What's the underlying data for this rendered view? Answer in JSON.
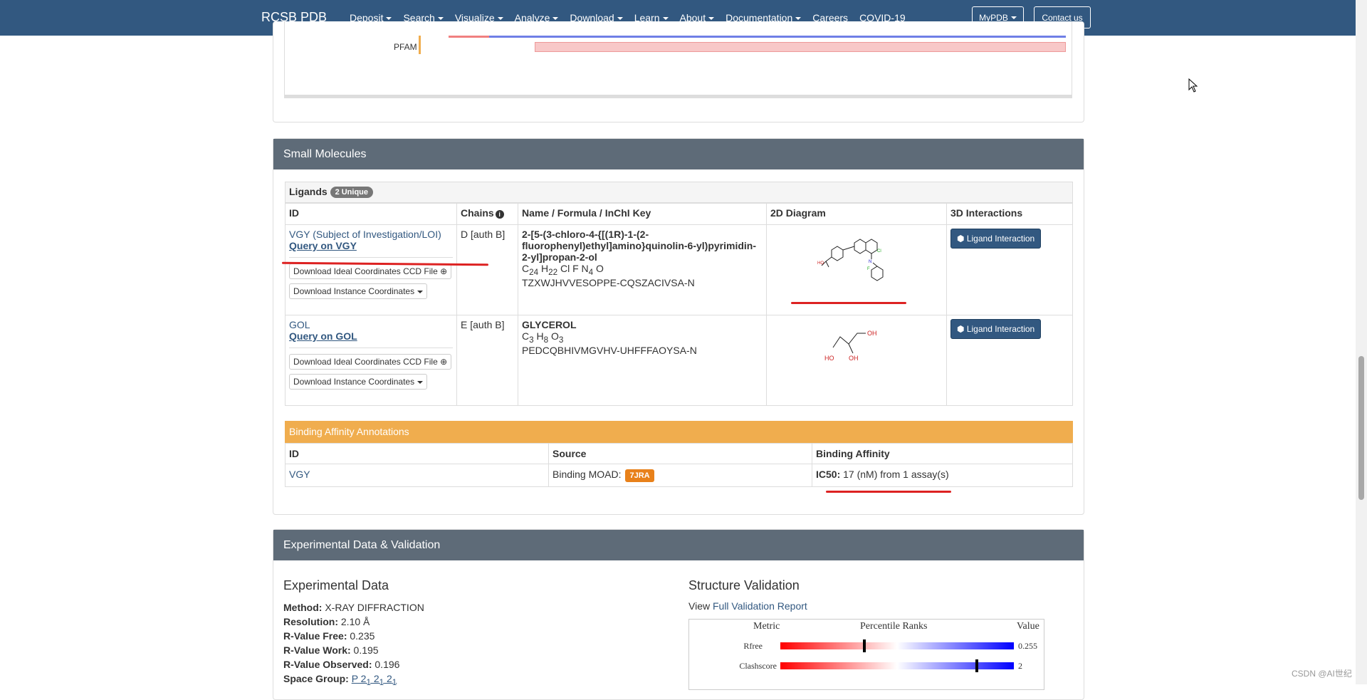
{
  "nav": {
    "brand": "RCSB PDB",
    "items": [
      "Deposit",
      "Search",
      "Visualize",
      "Analyze",
      "Download",
      "Learn",
      "About",
      "Documentation"
    ],
    "careers": "Careers",
    "covid": "COVID-19",
    "mypdb": "MyPDB",
    "contact": "Contact us"
  },
  "top_panel": {
    "pfam_label": "PFAM"
  },
  "small_molecules": {
    "heading": "Small Molecules",
    "ligands_title": "Ligands",
    "unique_badge": "2 Unique",
    "headers": {
      "id": "ID",
      "chains": "Chains",
      "name": "Name / Formula / InChI Key",
      "diagram": "2D Diagram",
      "interactions": "3D Interactions"
    },
    "rows": [
      {
        "id_link": "VGY (Subject of Investigation/LOI)",
        "query": "Query on VGY",
        "dl_ideal": "Download Ideal Coordinates CCD File",
        "dl_instance": "Download Instance Coordinates",
        "chains": "D [auth B]",
        "name": "2-[5-(3-chloro-4-{[(1R)-1-(2-fluorophenyl)ethyl]amino}quinolin-6-yl)pyrimidin-2-yl]propan-2-ol",
        "formula": [
          {
            "el": "C",
            "n": "24"
          },
          {
            "el": "H",
            "n": "22"
          },
          {
            "el": "Cl",
            "n": ""
          },
          {
            "el": "F",
            "n": ""
          },
          {
            "el": "N",
            "n": "4"
          },
          {
            "el": "O",
            "n": ""
          }
        ],
        "inchi": "TZXWJHVVESOPPE-CQSZACIVSA-N",
        "btn": "Ligand Interaction"
      },
      {
        "id_link": "GOL",
        "query": "Query on GOL",
        "dl_ideal": "Download Ideal Coordinates CCD File",
        "dl_instance": "Download Instance Coordinates",
        "chains": "E [auth B]",
        "name": "GLYCEROL",
        "formula": [
          {
            "el": "C",
            "n": "3"
          },
          {
            "el": "H",
            "n": "8"
          },
          {
            "el": "O",
            "n": "3"
          }
        ],
        "inchi": "PEDCQBHIVMGVHV-UHFFFAOYSA-N",
        "btn": "Ligand Interaction"
      }
    ],
    "gol_atoms": {
      "oh1": "OH",
      "oh2": "HO",
      "oh3": "OH"
    },
    "vgy_atoms": {
      "f": "F",
      "n": "N",
      "cl": "Cl",
      "ho": "HO"
    },
    "binding": {
      "title": "Binding Affinity Annotations",
      "headers": {
        "id": "ID",
        "source": "Source",
        "affinity": "Binding Affinity"
      },
      "row": {
        "id": "VGY",
        "source": "Binding MOAD:",
        "source_badge": "7JRA",
        "affinity_label": "IC50:",
        "affinity_value": "17 (nM) from 1 assay(s)"
      }
    }
  },
  "experimental": {
    "heading": "Experimental Data & Validation",
    "exp_title": "Experimental Data",
    "fields": [
      {
        "label": "Method:",
        "value": "X-RAY DIFFRACTION"
      },
      {
        "label": "Resolution:",
        "value": "2.10 Å"
      },
      {
        "label": "R-Value Free:",
        "value": "0.235"
      },
      {
        "label": "R-Value Work:",
        "value": "0.195"
      },
      {
        "label": "R-Value Observed:",
        "value": "0.196"
      }
    ],
    "space_group_label": "Space Group:",
    "space_group": {
      "prefix": "P 2",
      "subs": [
        "1",
        "1",
        "1"
      ]
    },
    "val_title": "Structure Validation",
    "view_text": "View",
    "report_link": "Full Validation Report",
    "slider": {
      "metric": "Metric",
      "percentile": "Percentile Ranks",
      "value": "Value",
      "rows": [
        {
          "name": "Rfree",
          "value": "0.255",
          "pct": 0.36
        },
        {
          "name": "Clashscore",
          "value": "2",
          "pct": 0.84
        }
      ]
    }
  },
  "watermark": "CSDN @AI世纪"
}
